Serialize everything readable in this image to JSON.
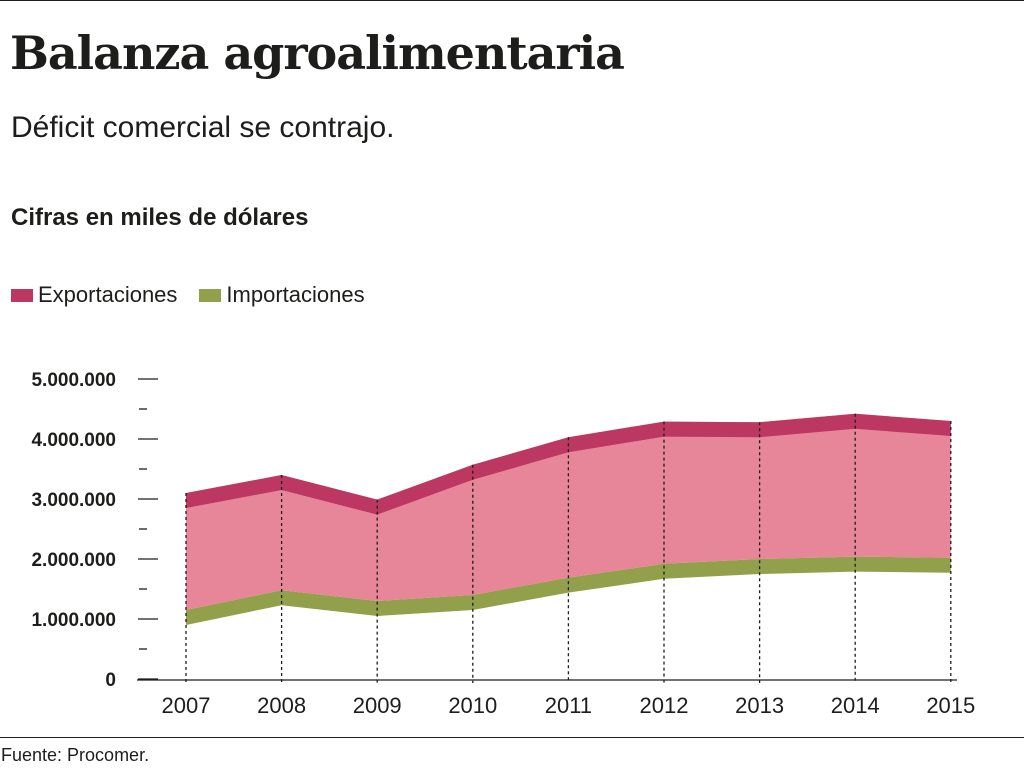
{
  "header": {
    "title": "Balanza agroalimentaria",
    "subtitle": "Déficit comercial se contrajo.",
    "units": "Cifras en miles de dólares"
  },
  "source": "Fuente: Procomer.",
  "colors": {
    "exports_band": "#bd3763",
    "exports_fill": "#e88699",
    "imports_band": "#92a04c",
    "axis": "#1d1d1b"
  },
  "chart_data": {
    "type": "area",
    "title": "Balanza agroalimentaria",
    "subtitle": "Déficit comercial se contrajo.",
    "ylabel": "Cifras en miles de dólares",
    "x": [
      "2007",
      "2008",
      "2009",
      "2010",
      "2011",
      "2012",
      "2013",
      "2014",
      "2015"
    ],
    "series": [
      {
        "name": "Exportaciones",
        "color": "#bd3763",
        "values": [
          3100000,
          3400000,
          2990000,
          3570000,
          4030000,
          4290000,
          4280000,
          4420000,
          4300000
        ]
      },
      {
        "name": "Importaciones",
        "color": "#92a04c",
        "values": [
          1150000,
          1480000,
          1300000,
          1400000,
          1690000,
          1920000,
          2000000,
          2040000,
          2020000
        ]
      }
    ],
    "ylim": [
      0,
      5000000
    ],
    "yticks": [
      "0",
      "1.000.000",
      "2.000.000",
      "3.000.000",
      "4.000.000",
      "5.000.000"
    ],
    "legend": "top-left",
    "grid": false
  }
}
